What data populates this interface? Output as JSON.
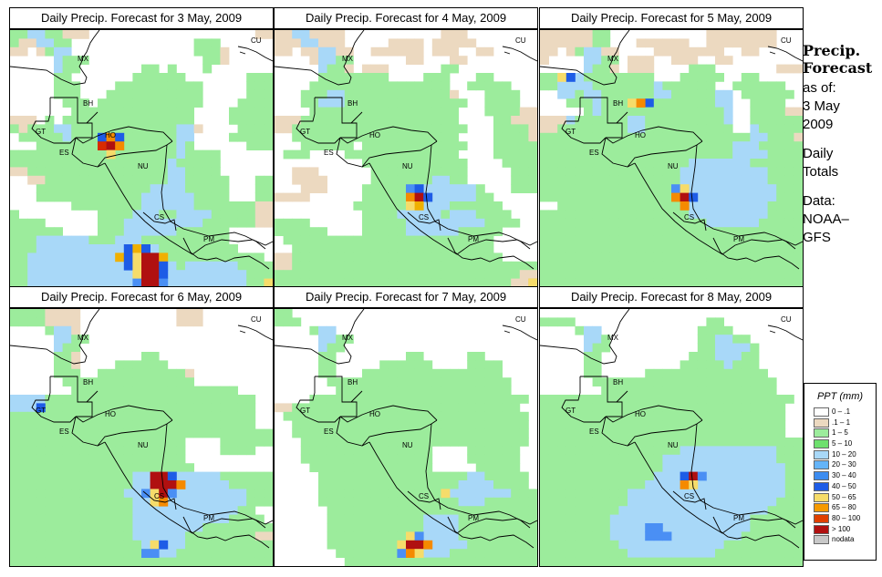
{
  "panels": [
    {
      "title": "Daily Precip. Forecast for  3 May, 2009",
      "grid": [
        "ggbbggcccwwwwwwwwwwwwwwwwwwwcc",
        "gccbbggwwwwwwwwwwwwwwgggwwwwww",
        "ccwcgbbwwwwwwwwwwwwwwgggcwwwww",
        "wwwwwbgggwwwwwwwwwwwwwggcwwwww",
        "wwwwwbggwwwwwwwggwgwwwgwwwwwww",
        "wwwwwggwwwwwwwggggggwwwwwwwggg",
        "wwwwwgggwwwwggggggggggwwwwwggg",
        "wwwwwgggwwwgggggggggggwwwwwggg",
        "wwwwwwgggwggggggggggggwwwwgggg",
        "wwwwwwwggggggggggggggwwwwggggg",
        "cccwgwgggggggggggggggwwwwggggg",
        "gcgggbbggggggggggggbbcwwwwgggg",
        "wgggggbggggggggggggbbwwwwggggg",
        "wwwggggggggggggggggbgwwwwwwggg",
        "gggggggggggggggggggbggggwwwwww",
        "ggggggggggggggggggbgggggwwwwww",
        "ccggggggggggggggggbbggggwwwwww",
        "wwccggggggggggggggbbgggggwwwgg",
        "wwwgggggggggggggbbbbgggggwwwgg",
        "wwwggggggggggggbbbbbbggggwwwgg",
        "wwwwwwwggggggggbbbbbbgggggggcc",
        "gwwwwwwwwwggggbbbggbbbbgggggcc",
        "ggggwwwwwwgggbbbbbbbbbggggggcc",
        "ggggggwwwwgggbbbbbbggggggwwwww",
        "gggbbbbbbgggbbbggggggggggwwwww",
        "gggbbbbbbbbbbbbbbgggggggggwwww",
        "ggbbbbbbbbbbbbbbbggggggggggggw",
        "ggbbbbbbbbbbbbbbbbbgbbbbbbgggg",
        "ggbbbbbbbbbbbbbbbbbbbbbbbbbggg",
        "ggbbbbbbbbbbbbbbbbbbbbbbbbbggg"
      ],
      "hot": [
        {
          "r": 12,
          "c": 10,
          "v": "d"
        },
        {
          "r": 12,
          "c": 11,
          "v": "o"
        },
        {
          "r": 12,
          "c": 12,
          "v": "d"
        },
        {
          "r": 13,
          "c": 10,
          "v": "r"
        },
        {
          "r": 13,
          "c": 11,
          "v": "R"
        },
        {
          "r": 13,
          "c": 12,
          "v": "o"
        },
        {
          "r": 14,
          "c": 11,
          "v": "y"
        },
        {
          "r": 25,
          "c": 13,
          "v": "d"
        },
        {
          "r": 25,
          "c": 14,
          "v": "n"
        },
        {
          "r": 25,
          "c": 15,
          "v": "d"
        },
        {
          "r": 26,
          "c": 12,
          "v": "n"
        },
        {
          "r": 26,
          "c": 13,
          "v": "d"
        },
        {
          "r": 26,
          "c": 14,
          "v": "y"
        },
        {
          "r": 26,
          "c": 15,
          "v": "R"
        },
        {
          "r": 26,
          "c": 16,
          "v": "R"
        },
        {
          "r": 26,
          "c": 17,
          "v": "n"
        },
        {
          "r": 27,
          "c": 13,
          "v": "d"
        },
        {
          "r": 27,
          "c": 14,
          "v": "y"
        },
        {
          "r": 27,
          "c": 15,
          "v": "R"
        },
        {
          "r": 27,
          "c": 16,
          "v": "R"
        },
        {
          "r": 27,
          "c": 17,
          "v": "d"
        },
        {
          "r": 28,
          "c": 14,
          "v": "y"
        },
        {
          "r": 28,
          "c": 15,
          "v": "R"
        },
        {
          "r": 28,
          "c": 16,
          "v": "R"
        },
        {
          "r": 28,
          "c": 17,
          "v": "d"
        },
        {
          "r": 29,
          "c": 14,
          "v": "m"
        },
        {
          "r": 29,
          "c": 15,
          "v": "R"
        },
        {
          "r": 29,
          "c": 16,
          "v": "R"
        },
        {
          "r": 29,
          "c": 17,
          "v": "m"
        },
        {
          "r": 29,
          "c": 29,
          "v": "y"
        }
      ]
    },
    {
      "title": "Daily Precip. Forecast for  4 May, 2009",
      "grid": [
        "ccbbccccwwwwwwwwwwwcccwwwwwwww",
        "cccbbcccwwwwwccccwcccccwwwwwww",
        "ccwccbbccwwccccccwcccwwccwwwww",
        "wwwwcbbggwwwwwwccwwwccwwwwwwww",
        "wwwwwbggcwcccwwwwwwggwwwwwwwww",
        "wwwwwggggggggwwwwgggwwwggwwwww",
        "wwwwggggggggggggggggwwgggggwww",
        "wwwgggbbggggggggggggcwwwggggww",
        "wwwggbbbggggggggggggggwwggggww",
        "wwwwgggggggggggggggggwwwggggcc",
        "cccggggggggggggggggggwwwwggccc",
        "ccggggggggggggggggggggwwwggggc",
        "wwgggggggggggggggggggwwwwggggc",
        "wwwggggggwggggggggggggwwwggggg",
        "wgggwwwwgggggggggggggwwwwggggg",
        "wwwwwwwwwwggggggggggggwwwwgggg",
        "wwcccwwwwwwgggggggggggwwwwwggg",
        "wwccccwwwwwgggggggbbggwwwwwggg",
        "wwwcccwwwwgggggggbbbbbbgwwwggg",
        "ccccwwwwwwggggggbbbbbbbggwwwww",
        "wwwwwwwwwggggggbbbbbggggggwwww",
        "wwwwwwwwwwggggbbbbbgbbbggggwww",
        "ggggwwwwwwgggggbbbbbbbbbggggww",
        "ggggggwwwwgggggbbbbbbgggggwwww",
        "wggggggggggggggggggggggggwwwww",
        "wwgggggggggggggggggggggggwwwww",
        "ccggggggggggggggggggggggggwwww",
        "ccgggggggggggggggggggggggggggg",
        "ggggggggggggggggggggggggggggcc",
        "gggggggggggggggggggggggggggccn"
      ],
      "hot": [
        {
          "r": 18,
          "c": 15,
          "v": "m"
        },
        {
          "r": 18,
          "c": 16,
          "v": "d"
        },
        {
          "r": 19,
          "c": 15,
          "v": "o"
        },
        {
          "r": 19,
          "c": 16,
          "v": "R"
        },
        {
          "r": 19,
          "c": 17,
          "v": "d"
        },
        {
          "r": 20,
          "c": 15,
          "v": "y"
        },
        {
          "r": 20,
          "c": 16,
          "v": "n"
        },
        {
          "r": 29,
          "c": 29,
          "v": "y"
        }
      ]
    },
    {
      "title": "Daily Precip. Forecast for  5 May, 2009",
      "grid": [
        "ccccccggwwwwwwwwwwwccccccccwww",
        "ccccccggwwwccccccwwccccccccwww",
        "ccwcgbbccwwwwccccccccwwccwwwww",
        "cwwwwbbggwcccwwcccwwccwwwwwwww",
        "wwwwwbggcwcccwwwwgggwwwwwwwccc",
        "ggbmbggggggggwwwgggggwwggwwwww",
        "ggbbbbgggggggbggggggwwggggggww",
        "wwbbgbbggggggbbgggggbbwggggggw",
        "wwwgggbggggbdgggggggbbwwggggww",
        "wwwwwgbggggggggggggggbwwggggcc",
        "cccbggggggbbgggggggggbwwgggggg",
        "ccggggggggbbggggggggggwwbggggg",
        "ggggggggggggggggggggggggbbgggc",
        "ggggggggggggggggggggggbbbggggg",
        "ggggggggggggggggggggggbbbbgggg",
        "gggggggggggggggggbbbbbbbgggggg",
        "ggggggggggggggggbbbbbbbbbbgggg",
        "ggggggggggggggggbbbbbbbbbbgggg",
        "ggggggggggggggggbbbbbbbbbbbggg",
        "gggggggggggggggbbbbbbbbbbbbggg",
        "wwggggggggggggggbbbbbbbbbbgggg",
        "gggggggggggggggggbbbbbbbbbgggg",
        "gggggggggggggggggggbbbbbbggggg",
        "gggggggggggggggggggggggggggggg",
        "gggggggggggggggggggggggggggggg",
        "gggggggggggggggggggggggggggggg",
        "gggggggggggggggggggggggggggggg",
        "gggggggggggggggggggggggggggggg",
        "gggggggggggggggggggggggggggggg",
        "gggggggggggggggggggggggggggggg"
      ],
      "hot": [
        {
          "r": 5,
          "c": 2,
          "v": "y"
        },
        {
          "r": 5,
          "c": 3,
          "v": "d"
        },
        {
          "r": 8,
          "c": 10,
          "v": "y"
        },
        {
          "r": 8,
          "c": 11,
          "v": "o"
        },
        {
          "r": 18,
          "c": 15,
          "v": "m"
        },
        {
          "r": 18,
          "c": 16,
          "v": "y"
        },
        {
          "r": 19,
          "c": 15,
          "v": "o"
        },
        {
          "r": 19,
          "c": 16,
          "v": "R"
        },
        {
          "r": 19,
          "c": 17,
          "v": "d"
        },
        {
          "r": 20,
          "c": 16,
          "v": "o"
        }
      ]
    },
    {
      "title": "Daily Precip. Forecast for  6 May, 2009",
      "grid": [
        "ggggccccwwwwwwwwwwwcccwwwwwwww",
        "ggggccccwwwwwwwwwwwcccwwwwwwww",
        "wwwwgbbcwwwwwwwwwwwwwwwwwwwwww",
        "wwwwwbbggwwwwwwwwwwwwwwwwwwwww",
        "wwwwwbggwwwwwwwwwwwwwwwwwwwwww",
        "wwwwwggcwwwwwwwggwwwwwwwwwwwww",
        "wwwwwggcwwwwggggggwwwwwwwwwwww",
        "wwwwwgggwwggggggggggcwwwwwwwww",
        "wwwwwwgggggggggggggggwwwwwwwww",
        "wwwwwwwgggggggggggggggggggwwww",
        "bbbbggggggggggggggggggggggggww",
        "bbbbggggggggggggggggggggggggww",
        "ggggggggggggggggggggggggggggww",
        "ggggggggggggggggggggggggggggww",
        "gggggggggggggggggggggggggggggg",
        "ggggggggggggggggggggwwwwgggggg",
        "ggggggggggggggggggggwwwwggggww",
        "ggggggggggggggggggggwwwwwwwwww",
        "gggggggggggggggggggggwwwwwwwww",
        "ggggggggggggggbbbbbbbbbbgggggg",
        "ggggggggggggggbbbbbbbbbbbggggg",
        "gggggggggggggbbbbbbbbbbbbbbggg",
        "ggggggggggggggbbbbbbbbbbbbbggg",
        "ggggggggggggggbbbbbbbbbbbbggww",
        "ggggggggggggggbbbbbbbbbbbggggw",
        "ggggggggggggggbbbbbbbbgggggggg",
        "ggggggggggggggbbbbbbggggggggcc",
        "gggggggggggggggbbbbbgggggggggg",
        "ggggggggggggggggbbbggggggggggg",
        "gggggggggggggggggggggggggggggg"
      ],
      "hot": [
        {
          "r": 11,
          "c": 3,
          "v": "d"
        },
        {
          "r": 19,
          "c": 16,
          "v": "R"
        },
        {
          "r": 19,
          "c": 17,
          "v": "R"
        },
        {
          "r": 19,
          "c": 18,
          "v": "d"
        },
        {
          "r": 20,
          "c": 16,
          "v": "R"
        },
        {
          "r": 20,
          "c": 17,
          "v": "R"
        },
        {
          "r": 20,
          "c": 18,
          "v": "R"
        },
        {
          "r": 20,
          "c": 19,
          "v": "o"
        },
        {
          "r": 21,
          "c": 15,
          "v": "m"
        },
        {
          "r": 21,
          "c": 16,
          "v": "y"
        },
        {
          "r": 21,
          "c": 17,
          "v": "R"
        },
        {
          "r": 21,
          "c": 18,
          "v": "m"
        },
        {
          "r": 22,
          "c": 16,
          "v": "y"
        },
        {
          "r": 22,
          "c": 17,
          "v": "o"
        },
        {
          "r": 27,
          "c": 16,
          "v": "y"
        },
        {
          "r": 27,
          "c": 17,
          "v": "d"
        },
        {
          "r": 28,
          "c": 15,
          "v": "m"
        },
        {
          "r": 28,
          "c": 16,
          "v": "m"
        }
      ]
    },
    {
      "title": "Daily Precip. Forecast for  7 May, 2009",
      "grid": [
        "ggwwwwwwwwwwwwwwwwwwwwwwwwwwww",
        "gggwwwwwwwwwwwwwwwwwwwwwwwwwww",
        "wwwwgbbwwwwwwwwwwwwwwwwwwwwwww",
        "wwwwwbbggwwwwwwwwwwwwwwwwwwwww",
        "wwwwwbggwwwwwwwwwwwwwwwwwwwwww",
        "wwwwwggwwwwwwwwggwwwwwggwwwwww",
        "wwwwwggwwwwwggggggwwwwggggwwww",
        "wwwwwggwwwggggggggggggggggwwww",
        "wwwwwwgggggggggggggggggggggwww",
        "wwwwwwwggggggggggggggggggggwww",
        "wwwwgggggggggggggggggggggggggw",
        "ccggggggggggggggggggggggggggww",
        "wggggggggggggggggggggggggggggw",
        "wwgggggggggggggggggggggggggggw",
        "wwgggggggggggggggggggggggggggw",
        "wwwggggggggggggggggggggggggggw",
        "wwwgggggggggggggggwwwwggggggww",
        "wwwgggggggggggggggwwwwggggggww",
        "wwwwggggggggggggggwwwwwgggggww",
        "wwwwwgggggggggggggggggbbgggggw",
        "wwwwwggggggggggggggggbbbbggggw",
        "wwwwwgggggggggggggggbbbbbbbggg",
        "wwwwwggggggggggggggggbbbgggggg",
        "wwwwwwgggggggggggggggggggggggg",
        "wwwwwwgggggggggggbbbbggggggggg",
        "wwwwwwgggggggggggbbbbggggggggg",
        "wwwwwwggggggggggbbbbbggggggggg",
        "wwwwwwgggggggggbbbbbbbgggggggg",
        "wwwwwwwggggggggggbbbgggggggggg",
        "wwwwwwwwgggggggggggggggggggggg"
      ],
      "hot": [
        {
          "r": 21,
          "c": 19,
          "v": "y"
        },
        {
          "r": 26,
          "c": 15,
          "v": "y"
        },
        {
          "r": 26,
          "c": 16,
          "v": "m"
        },
        {
          "r": 27,
          "c": 14,
          "v": "y"
        },
        {
          "r": 27,
          "c": 15,
          "v": "R"
        },
        {
          "r": 27,
          "c": 16,
          "v": "R"
        },
        {
          "r": 27,
          "c": 17,
          "v": "o"
        },
        {
          "r": 28,
          "c": 14,
          "v": "m"
        },
        {
          "r": 28,
          "c": 15,
          "v": "o"
        },
        {
          "r": 28,
          "c": 16,
          "v": "y"
        }
      ]
    },
    {
      "title": "Daily Precip. Forecast for  8 May, 2009",
      "grid": [
        "wwwwwwwwwwwwwwwwwwwwwwwwwwwwww",
        "ggggwwwwwwwwwwwwwwwggwwwwwwwww",
        "wwwwgbbwwwwwwwwwwwggggwwwwwwww",
        "wwwwwbbgwwwwwwwwwwggbbggwwwwww",
        "wwwwwbggwwwwwwwwwwggbbbbgwwwww",
        "wwwwwggwwwwwwwwwwgggbbbggwwwww",
        "wwwwwggwwwwwwwwwgggggbgggwwwww",
        "wwwwwggwwwwwggggggggggggggwwww",
        "wwwwwwgggggggggggggggggggggwww",
        "wwwwwwwggggggggggggggggggggwww",
        "gggggggggggggggggggggggggggggw",
        "ggggggggggggggggggggggggggggww",
        "ggggggggggggggggggggggggggggww",
        "ggggggggggggggggggggggggggggww",
        "ggggggggggggggggggggggggggggww",
        "gggggggggggggggggggggggggggggg",
        "ggggggggggggggggbbbbbbbbbbbggg",
        "ggggggggggggggbbbbbbbbbbbbbggg",
        "ggggggggggggggbbbbbbbbbbbbbbgg",
        "gggggggggggggbbbbbbbbbbbbbbbgg",
        "ggggggggggggbbbbbbbbbbbbbbbbgg",
        "ggggggggggbbbbbbbbbbbbbbbbbbgg",
        "ggggggggggbbbbbbbbbbbbbbbbbggg",
        "gggggggggbbbbbbbbbbbbbbbbbgggg",
        "ggggggggbbbbbbbbbbbbbbbbgggggg",
        "ggggggggbbbbbbbbbbbbbbbbgggggg",
        "ggggggggbbbbbbbbbbbbbbbggggggg",
        "gggggggggbbbbbbbbbbbbggggggggg",
        "ggggggggggbbbbbbbbbbgggggggggg",
        "gggggggggggggggggggggggggggggg"
      ],
      "hot": [
        {
          "r": 19,
          "c": 16,
          "v": "d"
        },
        {
          "r": 19,
          "c": 17,
          "v": "R"
        },
        {
          "r": 19,
          "c": 18,
          "v": "m"
        },
        {
          "r": 20,
          "c": 16,
          "v": "o"
        },
        {
          "r": 20,
          "c": 17,
          "v": "y"
        },
        {
          "r": 25,
          "c": 12,
          "v": "m"
        },
        {
          "r": 25,
          "c": 13,
          "v": "m"
        },
        {
          "r": 26,
          "c": 12,
          "v": "m"
        },
        {
          "r": 26,
          "c": 13,
          "v": "m"
        },
        {
          "r": 26,
          "c": 14,
          "v": "m"
        }
      ]
    }
  ],
  "cell_colors": {
    "w": "#ffffff",
    "c": "#ecd9c0",
    "g": "#9cec9c",
    "b": "#a8d8f8",
    "m": "#4a8ff4",
    "d": "#1e5ce6",
    "y": "#f6dc6a",
    "o": "#f58a00",
    "n": "#f0b000",
    "r": "#d82c00",
    "R": "#b01010"
  },
  "country_labels": [
    "MX",
    "BH",
    "GT",
    "HO",
    "ES",
    "NU",
    "CS",
    "PM",
    "CU"
  ],
  "sidebar": {
    "title_line1": "Precip.",
    "title_line2": "Forecast",
    "asof_line1": "as of:",
    "asof_line2": "3 May",
    "asof_line3": "2009",
    "totals_line1": "Daily",
    "totals_line2": "Totals",
    "source_line1": "Data:",
    "source_line2": "NOAA–",
    "source_line3": "GFS"
  },
  "legend": {
    "title": "PPT (mm)",
    "items": [
      {
        "label": "0 – .1",
        "color": "#ffffff"
      },
      {
        "label": ".1 – 1",
        "color": "#ecd9c0"
      },
      {
        "label": "1 – 5",
        "color": "#9cec9c"
      },
      {
        "label": "5 – 10",
        "color": "#6ee06e"
      },
      {
        "label": "10 – 20",
        "color": "#a8d8f8"
      },
      {
        "label": "20 – 30",
        "color": "#64b4f8"
      },
      {
        "label": "30 – 40",
        "color": "#3c8cf0"
      },
      {
        "label": "40 – 50",
        "color": "#1e5ce6"
      },
      {
        "label": "50 – 65",
        "color": "#f6dc6a"
      },
      {
        "label": "65 – 80",
        "color": "#f59a00"
      },
      {
        "label": "80 – 100",
        "color": "#e04000"
      },
      {
        "label": "> 100",
        "color": "#b01010"
      },
      {
        "label": "nodata",
        "color": "#c8c8c8"
      }
    ]
  }
}
